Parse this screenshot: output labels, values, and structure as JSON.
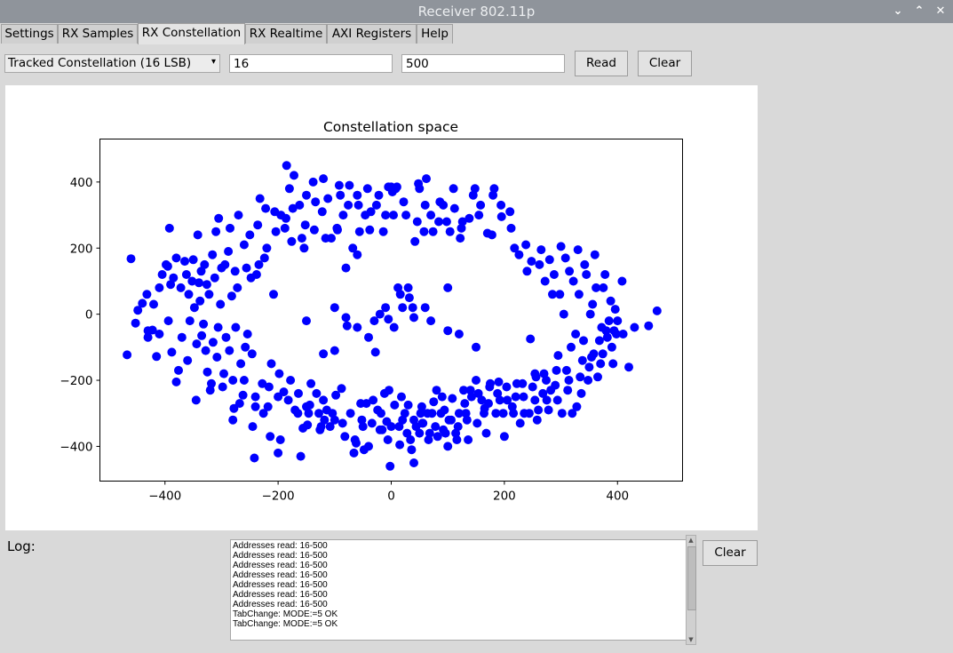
{
  "window": {
    "title": "Receiver 802.11p"
  },
  "title_controls": {
    "minimize": "⌄",
    "maximize": "⌃",
    "close": "✕"
  },
  "tabs": [
    {
      "label": "Settings"
    },
    {
      "label": "RX Samples"
    },
    {
      "label": "RX Constellation"
    },
    {
      "label": "RX Realtime"
    },
    {
      "label": "AXI Registers"
    },
    {
      "label": "Help"
    }
  ],
  "active_tab": "RX Constellation",
  "toolbar": {
    "mode_selected": "Tracked Constellation (16 LSB)",
    "start_value": "16",
    "count_value": "500",
    "read_label": "Read",
    "clear_label": "Clear"
  },
  "chart_data": {
    "type": "scatter",
    "title": "Constellation space",
    "xlabel": "",
    "ylabel": "",
    "xlim": [
      -515,
      515
    ],
    "ylim": [
      -505,
      530
    ],
    "xticks": [
      -400,
      -200,
      0,
      200,
      400
    ],
    "yticks": [
      -400,
      -200,
      0,
      200,
      400
    ],
    "xtick_labels": [
      "−400",
      "−200",
      "0",
      "200",
      "400"
    ],
    "ytick_labels": [
      "−400",
      "−200",
      "0",
      "200",
      "400"
    ],
    "color": "#0000ff",
    "points_description": "Approximately 500 blue points arranged in an elliptical ring around the origin, plus a sparse cluster near the center",
    "points": [
      [
        -467,
        -123
      ],
      [
        -460,
        168
      ],
      [
        -452,
        -27
      ],
      [
        -448,
        12
      ],
      [
        -440,
        33
      ],
      [
        -432,
        60
      ],
      [
        -430,
        -70
      ],
      [
        -422,
        -48
      ],
      [
        -415,
        -128
      ],
      [
        -410,
        -60
      ],
      [
        -405,
        120
      ],
      [
        -395,
        145
      ],
      [
        -392,
        260
      ],
      [
        -388,
        -115
      ],
      [
        -385,
        110
      ],
      [
        -380,
        -205
      ],
      [
        -372,
        80
      ],
      [
        -365,
        160
      ],
      [
        -358,
        60
      ],
      [
        -350,
        165
      ],
      [
        -345,
        -260
      ],
      [
        -340,
        95
      ],
      [
        -335,
        -65
      ],
      [
        -330,
        150
      ],
      [
        -325,
        -175
      ],
      [
        -320,
        -230
      ],
      [
        -315,
        -85
      ],
      [
        -310,
        250
      ],
      [
        -305,
        290
      ],
      [
        -300,
        140
      ],
      [
        -298,
        -220
      ],
      [
        -292,
        -70
      ],
      [
        -285,
        260
      ],
      [
        -282,
        55
      ],
      [
        -278,
        -285
      ],
      [
        -275,
        -40
      ],
      [
        -270,
        300
      ],
      [
        -262,
        -245
      ],
      [
        -258,
        -100
      ],
      [
        -250,
        240
      ],
      [
        -245,
        -340
      ],
      [
        -242,
        -435
      ],
      [
        -238,
        120
      ],
      [
        -232,
        350
      ],
      [
        -228,
        -210
      ],
      [
        -222,
        320
      ],
      [
        -218,
        -280
      ],
      [
        -212,
        -150
      ],
      [
        -208,
        60
      ],
      [
        -200,
        -420
      ],
      [
        -195,
        300
      ],
      [
        -190,
        -235
      ],
      [
        -185,
        450
      ],
      [
        -180,
        380
      ],
      [
        -178,
        -200
      ],
      [
        -172,
        420
      ],
      [
        -165,
        -300
      ],
      [
        -160,
        -430
      ],
      [
        -158,
        230
      ],
      [
        -152,
        270
      ],
      [
        -148,
        -335
      ],
      [
        -142,
        -210
      ],
      [
        -138,
        400
      ],
      [
        -132,
        -240
      ],
      [
        -128,
        -300
      ],
      [
        -122,
        310
      ],
      [
        -118,
        -320
      ],
      [
        -112,
        350
      ],
      [
        -108,
        -340
      ],
      [
        -100,
        -110
      ],
      [
        -95,
        255
      ],
      [
        -92,
        390
      ],
      [
        -88,
        -225
      ],
      [
        -85,
        300
      ],
      [
        -80,
        140
      ],
      [
        -78,
        -35
      ],
      [
        -72,
        -300
      ],
      [
        -68,
        200
      ],
      [
        -62,
        -390
      ],
      [
        -58,
        330
      ],
      [
        -52,
        -320
      ],
      [
        -48,
        -410
      ],
      [
        -42,
        380
      ],
      [
        -38,
        255
      ],
      [
        -32,
        -260
      ],
      [
        -28,
        -115
      ],
      [
        -22,
        360
      ],
      [
        -18,
        -300
      ],
      [
        -12,
        -240
      ],
      [
        -8,
        -325
      ],
      [
        -5,
        385
      ],
      [
        -2,
        -460
      ],
      [
        4,
        300
      ],
      [
        8,
        380
      ],
      [
        12,
        80
      ],
      [
        15,
        -395
      ],
      [
        18,
        -250
      ],
      [
        22,
        340
      ],
      [
        28,
        -360
      ],
      [
        32,
        50
      ],
      [
        36,
        -410
      ],
      [
        40,
        -450
      ],
      [
        42,
        220
      ],
      [
        48,
        395
      ],
      [
        52,
        -300
      ],
      [
        55,
        -330
      ],
      [
        58,
        250
      ],
      [
        62,
        410
      ],
      [
        66,
        -380
      ],
      [
        70,
        300
      ],
      [
        75,
        -265
      ],
      [
        80,
        -230
      ],
      [
        84,
        280
      ],
      [
        88,
        -300
      ],
      [
        92,
        330
      ],
      [
        96,
        -360
      ],
      [
        100,
        -400
      ],
      [
        104,
        250
      ],
      [
        108,
        -255
      ],
      [
        112,
        320
      ],
      [
        118,
        -340
      ],
      [
        122,
        230
      ],
      [
        126,
        280
      ],
      [
        130,
        -270
      ],
      [
        136,
        -380
      ],
      [
        140,
        -230
      ],
      [
        145,
        360
      ],
      [
        150,
        -200
      ],
      [
        155,
        300
      ],
      [
        160,
        -260
      ],
      [
        165,
        -285
      ],
      [
        170,
        245
      ],
      [
        175,
        -210
      ],
      [
        180,
        360
      ],
      [
        185,
        -300
      ],
      [
        190,
        -205
      ],
      [
        195,
        295
      ],
      [
        200,
        -370
      ],
      [
        205,
        -260
      ],
      [
        212,
        260
      ],
      [
        218,
        200
      ],
      [
        222,
        -210
      ],
      [
        228,
        -330
      ],
      [
        235,
        -300
      ],
      [
        240,
        130
      ],
      [
        246,
        -75
      ],
      [
        250,
        -220
      ],
      [
        256,
        -190
      ],
      [
        260,
        -290
      ],
      [
        265,
        195
      ],
      [
        270,
        -180
      ],
      [
        275,
        -260
      ],
      [
        280,
        165
      ],
      [
        285,
        60
      ],
      [
        290,
        -215
      ],
      [
        295,
        -125
      ],
      [
        300,
        205
      ],
      [
        305,
        0
      ],
      [
        310,
        -170
      ],
      [
        315,
        130
      ],
      [
        320,
        -300
      ],
      [
        326,
        -60
      ],
      [
        330,
        195
      ],
      [
        336,
        -240
      ],
      [
        340,
        -80
      ],
      [
        345,
        120
      ],
      [
        350,
        -160
      ],
      [
        356,
        30
      ],
      [
        360,
        180
      ],
      [
        365,
        -190
      ],
      [
        370,
        -150
      ],
      [
        375,
        80
      ],
      [
        380,
        -50
      ],
      [
        385,
        -20
      ],
      [
        390,
        -100
      ],
      [
        396,
        15
      ],
      [
        400,
        -20
      ],
      [
        410,
        -60
      ],
      [
        420,
        -160
      ],
      [
        430,
        -40
      ],
      [
        455,
        -35
      ],
      [
        470,
        10
      ],
      [
        -420,
        30
      ],
      [
        -398,
        150
      ],
      [
        -390,
        90
      ],
      [
        -376,
        -170
      ],
      [
        -362,
        120
      ],
      [
        -356,
        -20
      ],
      [
        -348,
        20
      ],
      [
        -342,
        240
      ],
      [
        -336,
        130
      ],
      [
        -328,
        -110
      ],
      [
        -322,
        60
      ],
      [
        -316,
        180
      ],
      [
        -308,
        -130
      ],
      [
        -302,
        30
      ],
      [
        -296,
        -180
      ],
      [
        -288,
        190
      ],
      [
        -280,
        -200
      ],
      [
        -272,
        80
      ],
      [
        -266,
        -150
      ],
      [
        -260,
        210
      ],
      [
        -254,
        -60
      ],
      [
        -248,
        110
      ],
      [
        -240,
        -250
      ],
      [
        -234,
        150
      ],
      [
        -226,
        -300
      ],
      [
        -220,
        200
      ],
      [
        -214,
        -370
      ],
      [
        -204,
        250
      ],
      [
        -198,
        -180
      ],
      [
        -188,
        260
      ],
      [
        -182,
        -260
      ],
      [
        -176,
        220
      ],
      [
        -170,
        -290
      ],
      [
        -162,
        330
      ],
      [
        -156,
        -345
      ],
      [
        -150,
        360
      ],
      [
        -144,
        -275
      ],
      [
        -136,
        255
      ],
      [
        -126,
        -350
      ],
      [
        -120,
        410
      ],
      [
        -114,
        -290
      ],
      [
        -106,
        230
      ],
      [
        -98,
        -245
      ],
      [
        -90,
        360
      ],
      [
        -82,
        -370
      ],
      [
        -76,
        330
      ],
      [
        -66,
        -420
      ],
      [
        -60,
        360
      ],
      [
        -54,
        -270
      ],
      [
        -46,
        300
      ],
      [
        -40,
        -400
      ],
      [
        -34,
        -330
      ],
      [
        -26,
        330
      ],
      [
        -20,
        -350
      ],
      [
        -14,
        250
      ],
      [
        -6,
        -380
      ],
      [
        0,
        385
      ],
      [
        6,
        -275
      ],
      [
        10,
        385
      ],
      [
        16,
        60
      ],
      [
        20,
        -320
      ],
      [
        26,
        300
      ],
      [
        30,
        -275
      ],
      [
        34,
        -380
      ],
      [
        38,
        20
      ],
      [
        44,
        -340
      ],
      [
        50,
        380
      ],
      [
        54,
        -280
      ],
      [
        60,
        330
      ],
      [
        64,
        -300
      ],
      [
        68,
        -360
      ],
      [
        74,
        250
      ],
      [
        78,
        -340
      ],
      [
        82,
        -370
      ],
      [
        86,
        340
      ],
      [
        90,
        -250
      ],
      [
        94,
        -290
      ],
      [
        98,
        280
      ],
      [
        106,
        -320
      ],
      [
        110,
        380
      ],
      [
        116,
        -380
      ],
      [
        120,
        -300
      ],
      [
        124,
        260
      ],
      [
        128,
        -230
      ],
      [
        134,
        -320
      ],
      [
        138,
        290
      ],
      [
        142,
        -250
      ],
      [
        148,
        380
      ],
      [
        154,
        -240
      ],
      [
        158,
        330
      ],
      [
        164,
        -300
      ],
      [
        168,
        -360
      ],
      [
        174,
        -220
      ],
      [
        178,
        240
      ],
      [
        182,
        380
      ],
      [
        188,
        -240
      ],
      [
        194,
        330
      ],
      [
        198,
        -300
      ],
      [
        204,
        -220
      ],
      [
        210,
        310
      ],
      [
        216,
        -300
      ],
      [
        220,
        -250
      ],
      [
        226,
        180
      ],
      [
        232,
        -210
      ],
      [
        238,
        210
      ],
      [
        244,
        -300
      ],
      [
        248,
        160
      ],
      [
        254,
        -260
      ],
      [
        258,
        -320
      ],
      [
        262,
        150
      ],
      [
        268,
        -240
      ],
      [
        272,
        100
      ],
      [
        278,
        -290
      ],
      [
        282,
        -230
      ],
      [
        288,
        120
      ],
      [
        292,
        -170
      ],
      [
        298,
        60
      ],
      [
        302,
        -300
      ],
      [
        308,
        170
      ],
      [
        312,
        -230
      ],
      [
        318,
        -100
      ],
      [
        322,
        100
      ],
      [
        328,
        -280
      ],
      [
        332,
        60
      ],
      [
        338,
        -140
      ],
      [
        342,
        150
      ],
      [
        348,
        -200
      ],
      [
        352,
        0
      ],
      [
        358,
        -120
      ],
      [
        362,
        80
      ],
      [
        368,
        -80
      ],
      [
        372,
        -40
      ],
      [
        378,
        120
      ],
      [
        382,
        -70
      ],
      [
        388,
        40
      ],
      [
        392,
        -150
      ],
      [
        398,
        -60
      ],
      [
        408,
        100
      ],
      [
        -430,
        -50
      ],
      [
        -410,
        80
      ],
      [
        -394,
        -20
      ],
      [
        -380,
        170
      ],
      [
        -370,
        -70
      ],
      [
        -360,
        -140
      ],
      [
        -352,
        100
      ],
      [
        -344,
        -90
      ],
      [
        -338,
        40
      ],
      [
        -332,
        -30
      ],
      [
        -326,
        90
      ],
      [
        -318,
        -210
      ],
      [
        -312,
        110
      ],
      [
        -306,
        -40
      ],
      [
        -294,
        150
      ],
      [
        -286,
        -110
      ],
      [
        -276,
        130
      ],
      [
        -268,
        -270
      ],
      [
        -256,
        140
      ],
      [
        -246,
        -120
      ],
      [
        -236,
        270
      ],
      [
        -224,
        170
      ],
      [
        -216,
        -220
      ],
      [
        -206,
        310
      ],
      [
        -196,
        -380
      ],
      [
        -186,
        290
      ],
      [
        -174,
        320
      ],
      [
        -164,
        -240
      ],
      [
        -154,
        200
      ],
      [
        -146,
        -300
      ],
      [
        -134,
        340
      ],
      [
        -124,
        -340
      ],
      [
        -116,
        230
      ],
      [
        -104,
        -300
      ],
      [
        -96,
        260
      ],
      [
        -86,
        -330
      ],
      [
        -74,
        390
      ],
      [
        -64,
        -380
      ],
      [
        -56,
        250
      ],
      [
        -44,
        -270
      ],
      [
        -36,
        310
      ],
      [
        -24,
        -290
      ],
      [
        -16,
        -350
      ],
      [
        -10,
        300
      ],
      [
        -4,
        -230
      ],
      [
        2,
        370
      ],
      [
        14,
        -340
      ],
      [
        24,
        -300
      ],
      [
        40,
        -320
      ],
      [
        46,
        280
      ],
      [
        56,
        -330
      ],
      [
        72,
        -300
      ],
      [
        92,
        -350
      ],
      [
        102,
        -320
      ],
      [
        114,
        -360
      ],
      [
        132,
        -300
      ],
      [
        152,
        -330
      ],
      [
        172,
        -270
      ],
      [
        192,
        -260
      ],
      [
        214,
        -280
      ],
      [
        234,
        -250
      ],
      [
        254,
        -180
      ],
      [
        274,
        -200
      ],
      [
        294,
        -260
      ],
      [
        314,
        -200
      ],
      [
        334,
        -190
      ],
      [
        354,
        -130
      ],
      [
        374,
        -120
      ],
      [
        394,
        -50
      ],
      [
        -240,
        -280
      ],
      [
        -120,
        -260
      ],
      [
        -60,
        180
      ],
      [
        -30,
        -20
      ],
      [
        -20,
        0
      ],
      [
        -10,
        20
      ],
      [
        -5,
        -15
      ],
      [
        5,
        -40
      ],
      [
        20,
        20
      ],
      [
        40,
        -10
      ],
      [
        60,
        20
      ],
      [
        100,
        -50
      ],
      [
        -150,
        -20
      ],
      [
        -80,
        -10
      ],
      [
        -40,
        -70
      ],
      [
        70,
        -20
      ],
      [
        120,
        -60
      ],
      [
        150,
        -100
      ],
      [
        -100,
        20
      ],
      [
        30,
        80
      ],
      [
        -60,
        -40
      ],
      [
        -120,
        -120
      ],
      [
        100,
        80
      ],
      [
        -280,
        -320
      ],
      [
        -260,
        -200
      ],
      [
        -200,
        -250
      ],
      [
        -150,
        -280
      ],
      [
        -100,
        -320
      ],
      [
        -50,
        -340
      ],
      [
        0,
        -340
      ],
      [
        50,
        -360
      ]
    ]
  }
}
